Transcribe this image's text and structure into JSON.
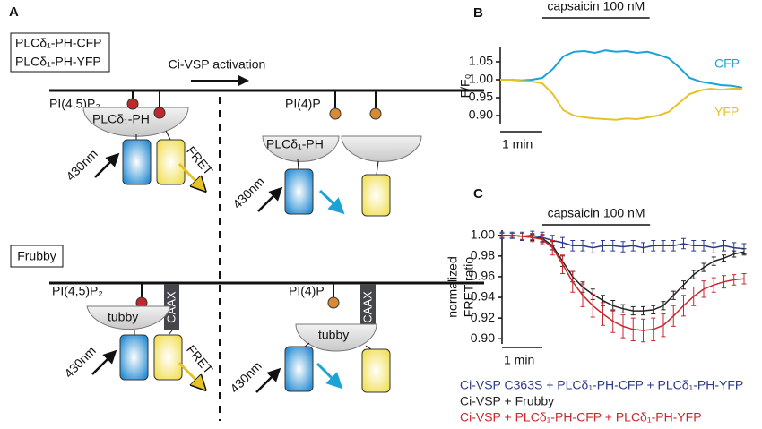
{
  "panel_a": {
    "label": "A",
    "constructs": [
      "PLCδ₁-PH-CFP",
      "PLCδ₁-PH-YFP"
    ],
    "activation": "Ci-VSP activation",
    "top": {
      "left": {
        "lipid": "PI(4,5)P₂",
        "domain": "PLCδ₁-PH",
        "excitation": "430nm",
        "fret": "FRET"
      },
      "right": {
        "lipid": "PI(4)P",
        "domain": "PLCδ₁-PH",
        "excitation": "430nm"
      }
    },
    "sensor": "Frubby",
    "bottom": {
      "left": {
        "lipid": "PI(4,5)P₂",
        "domain": "tubby",
        "anchor": "CAAX",
        "excitation": "430nm",
        "fret": "FRET"
      },
      "right": {
        "lipid": "PI(4)P",
        "domain": "tubby",
        "anchor": "CAAX",
        "excitation": "430nm"
      }
    }
  },
  "chart_data": [
    {
      "type": "line",
      "panel": "B",
      "ylabel": "F/F₀",
      "stimulus": {
        "label": "capsaicin 100 nM",
        "start": 1,
        "end": 3.55
      },
      "scalebar": {
        "label": "1 min",
        "value": 1
      },
      "xlim": [
        0,
        5.9
      ],
      "ylim": [
        0.875,
        1.09
      ],
      "yticks": [
        {
          "value": 0.9,
          "label": "0.90"
        },
        0.95,
        {
          "value": 1,
          "label": "1.00"
        },
        1.05
      ],
      "x": [
        0,
        0.25,
        0.5,
        0.75,
        1,
        1.25,
        1.5,
        1.75,
        2,
        2.25,
        2.5,
        2.75,
        3,
        3.25,
        3.5,
        3.75,
        4,
        4.25,
        4.5,
        4.75,
        5,
        5.25,
        5.5,
        5.75
      ],
      "series": [
        {
          "name": "CFP",
          "color": "#1ba3d6",
          "values": [
            1.0,
            1.0,
            0.998,
            1.0,
            1.005,
            1.03,
            1.065,
            1.078,
            1.08,
            1.075,
            1.082,
            1.078,
            1.08,
            1.075,
            1.078,
            1.07,
            1.06,
            1.035,
            1.005,
            0.995,
            0.99,
            0.985,
            0.983,
            0.978
          ]
        },
        {
          "name": "YFP",
          "color": "#e6c229",
          "values": [
            1.0,
            1.0,
            0.997,
            0.995,
            0.99,
            0.96,
            0.915,
            0.9,
            0.895,
            0.892,
            0.89,
            0.888,
            0.892,
            0.89,
            0.895,
            0.9,
            0.91,
            0.935,
            0.96,
            0.97,
            0.975,
            0.972,
            0.975,
            0.975
          ]
        }
      ]
    },
    {
      "type": "errorline",
      "panel": "C",
      "ylabel": [
        "normalized",
        "FRET ratio"
      ],
      "stimulus": {
        "label": "capsaicin 100 nM",
        "start": 1,
        "end": 3.67
      },
      "scalebar": {
        "label": "1 min",
        "value": 1
      },
      "xlim": [
        0,
        6.2
      ],
      "ylim": [
        0.895,
        1.005
      ],
      "yticks": [
        {
          "value": 0.9,
          "label": "0.90"
        },
        0.92,
        0.94,
        0.96,
        0.98,
        {
          "value": 1,
          "label": "1.00"
        }
      ],
      "x": [
        0,
        0.25,
        0.5,
        0.75,
        1,
        1.25,
        1.5,
        1.75,
        2,
        2.25,
        2.5,
        2.75,
        3,
        3.25,
        3.5,
        3.75,
        4,
        4.25,
        4.5,
        4.75,
        5,
        5.25,
        5.5,
        5.75,
        6
      ],
      "series": [
        {
          "name": "Ci-VSP C363S + PLCδ₁-PH-CFP + PLCδ₁-PH-YFP",
          "color": "#2b3a8a",
          "values": [
            1.0,
            1.0,
            0.999,
            1.0,
            0.998,
            0.995,
            0.993,
            0.99,
            0.99,
            0.988,
            0.99,
            0.99,
            0.989,
            0.99,
            0.988,
            0.99,
            0.99,
            0.99,
            0.992,
            0.99,
            0.99,
            0.988,
            0.99,
            0.988,
            0.987
          ],
          "errors": [
            0.003,
            0.003,
            0.004,
            0.004,
            0.005,
            0.005,
            0.005,
            0.005,
            0.005,
            0.005,
            0.005,
            0.005,
            0.005,
            0.005,
            0.005,
            0.005,
            0.005,
            0.005,
            0.005,
            0.005,
            0.005,
            0.005,
            0.005,
            0.005,
            0.005
          ]
        },
        {
          "name": "Ci-VSP + Frubby",
          "color": "#222222",
          "values": [
            1.0,
            1.0,
            0.999,
            0.998,
            0.997,
            0.99,
            0.975,
            0.96,
            0.95,
            0.943,
            0.937,
            0.932,
            0.929,
            0.927,
            0.927,
            0.928,
            0.932,
            0.942,
            0.952,
            0.962,
            0.969,
            0.975,
            0.978,
            0.982,
            0.984
          ],
          "errors": [
            0.002,
            0.002,
            0.003,
            0.003,
            0.003,
            0.004,
            0.005,
            0.005,
            0.005,
            0.005,
            0.005,
            0.005,
            0.004,
            0.004,
            0.004,
            0.004,
            0.004,
            0.004,
            0.004,
            0.004,
            0.004,
            0.004,
            0.003,
            0.003,
            0.003
          ]
        },
        {
          "name": "Ci-VSP + PLCδ₁-PH-CFP + PLCδ₁-PH-YFP",
          "color": "#c8282e",
          "values": [
            1.0,
            1.0,
            0.999,
            0.998,
            0.996,
            0.988,
            0.972,
            0.955,
            0.942,
            0.932,
            0.924,
            0.917,
            0.912,
            0.909,
            0.908,
            0.909,
            0.913,
            0.922,
            0.932,
            0.941,
            0.948,
            0.952,
            0.955,
            0.957,
            0.958
          ],
          "errors": [
            0.002,
            0.002,
            0.003,
            0.004,
            0.005,
            0.007,
            0.009,
            0.01,
            0.011,
            0.011,
            0.011,
            0.011,
            0.011,
            0.011,
            0.011,
            0.011,
            0.011,
            0.01,
            0.01,
            0.009,
            0.008,
            0.007,
            0.006,
            0.005,
            0.005
          ]
        }
      ]
    }
  ]
}
